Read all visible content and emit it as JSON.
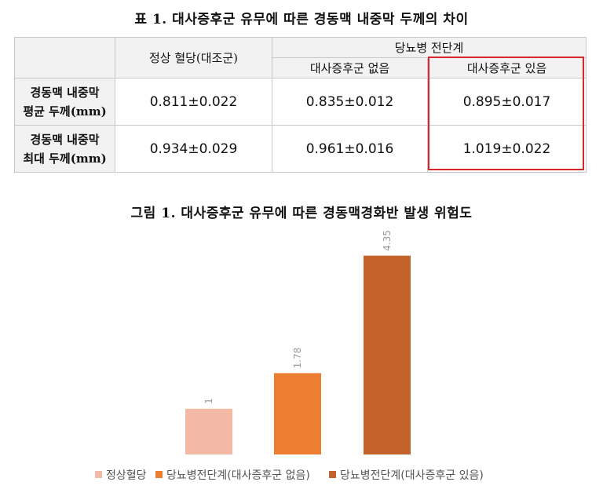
{
  "table_title": "표 1. 대사증후군 유무에 따른 경동맥 내중막 두께의 차이",
  "table": {
    "col_normal": "정상 혈당(대조군)",
    "col_group": "당뇨병 전단계",
    "col_no_ms": "대사증후군 없음",
    "col_ms": "대사증후군 있음",
    "rows": [
      {
        "label_line1": "경동맥 내중막",
        "label_line2": "평균 두께(mm)",
        "normal": "0.811±0.022",
        "no_ms": "0.835±0.012",
        "ms": "0.895±0.017"
      },
      {
        "label_line1": "경동맥 내중막",
        "label_line2": "최대 두께(mm)",
        "normal": "0.934±0.029",
        "no_ms": "0.961±0.016",
        "ms": "1.019±0.022"
      }
    ]
  },
  "chart_title": "그림 1. 대사증후군 유무에 따른 경동맥경화반 발생 위험도",
  "chart_data": {
    "type": "bar",
    "categories": [
      "정상혈당",
      "당뇨병전단계(대사증후군 없음)",
      "당뇨병전단계(대사증후군 있음)"
    ],
    "values": [
      1,
      1.78,
      4.35
    ],
    "value_labels": [
      "1",
      "1.78",
      "4.35"
    ],
    "colors": [
      "#f4b9a4",
      "#ed7d31",
      "#c3622a"
    ],
    "ylim": [
      0,
      4.5
    ],
    "grid": false,
    "legend_position": "bottom",
    "xlabel": "",
    "ylabel": ""
  }
}
